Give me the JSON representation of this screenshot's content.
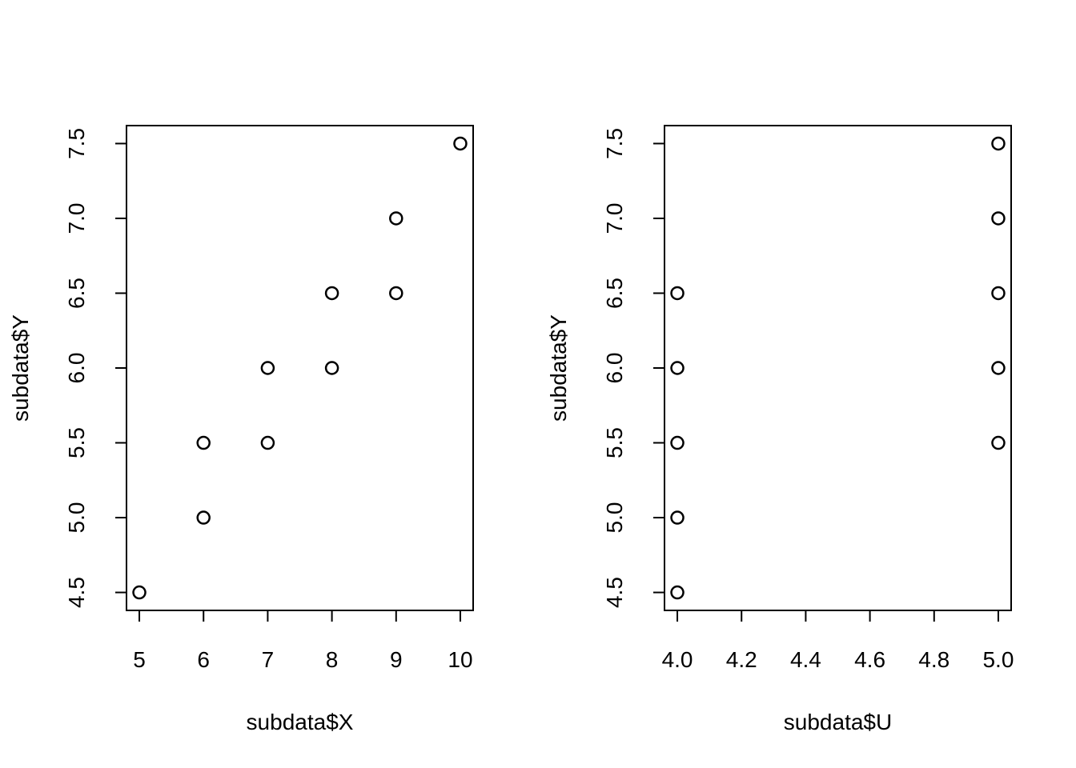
{
  "chart_data": [
    {
      "type": "scatter",
      "xlabel": "subdata$X",
      "ylabel": "subdata$Y",
      "xlim": [
        4.8,
        10.2
      ],
      "ylim": [
        4.38,
        7.62
      ],
      "xticks": [
        5,
        6,
        7,
        8,
        9,
        10
      ],
      "xtick_labels": [
        "5",
        "6",
        "7",
        "8",
        "9",
        "10"
      ],
      "yticks": [
        4.5,
        5.0,
        5.5,
        6.0,
        6.5,
        7.0,
        7.5
      ],
      "ytick_labels": [
        "4.5",
        "5.0",
        "5.5",
        "6.0",
        "6.5",
        "7.0",
        "7.5"
      ],
      "grid": false,
      "marker": "open-circle",
      "color": "#000000",
      "points": [
        {
          "x": 5,
          "y": 4.5
        },
        {
          "x": 6,
          "y": 5.0
        },
        {
          "x": 6,
          "y": 5.5
        },
        {
          "x": 7,
          "y": 5.5
        },
        {
          "x": 7,
          "y": 6.0
        },
        {
          "x": 8,
          "y": 6.0
        },
        {
          "x": 8,
          "y": 6.5
        },
        {
          "x": 9,
          "y": 6.5
        },
        {
          "x": 9,
          "y": 7.0
        },
        {
          "x": 10,
          "y": 7.5
        }
      ]
    },
    {
      "type": "scatter",
      "xlabel": "subdata$U",
      "ylabel": "subdata$Y",
      "xlim": [
        3.96,
        5.04
      ],
      "ylim": [
        4.38,
        7.62
      ],
      "xticks": [
        4.0,
        4.2,
        4.4,
        4.6,
        4.8,
        5.0
      ],
      "xtick_labels": [
        "4.0",
        "4.2",
        "4.4",
        "4.6",
        "4.8",
        "5.0"
      ],
      "yticks": [
        4.5,
        5.0,
        5.5,
        6.0,
        6.5,
        7.0,
        7.5
      ],
      "ytick_labels": [
        "4.5",
        "5.0",
        "5.5",
        "6.0",
        "6.5",
        "7.0",
        "7.5"
      ],
      "grid": false,
      "marker": "open-circle",
      "color": "#000000",
      "points": [
        {
          "x": 4,
          "y": 4.5
        },
        {
          "x": 4,
          "y": 5.0
        },
        {
          "x": 4,
          "y": 5.5
        },
        {
          "x": 4,
          "y": 6.0
        },
        {
          "x": 4,
          "y": 6.5
        },
        {
          "x": 5,
          "y": 5.5
        },
        {
          "x": 5,
          "y": 6.0
        },
        {
          "x": 5,
          "y": 6.5
        },
        {
          "x": 5,
          "y": 7.0
        },
        {
          "x": 5,
          "y": 7.5
        }
      ]
    }
  ]
}
